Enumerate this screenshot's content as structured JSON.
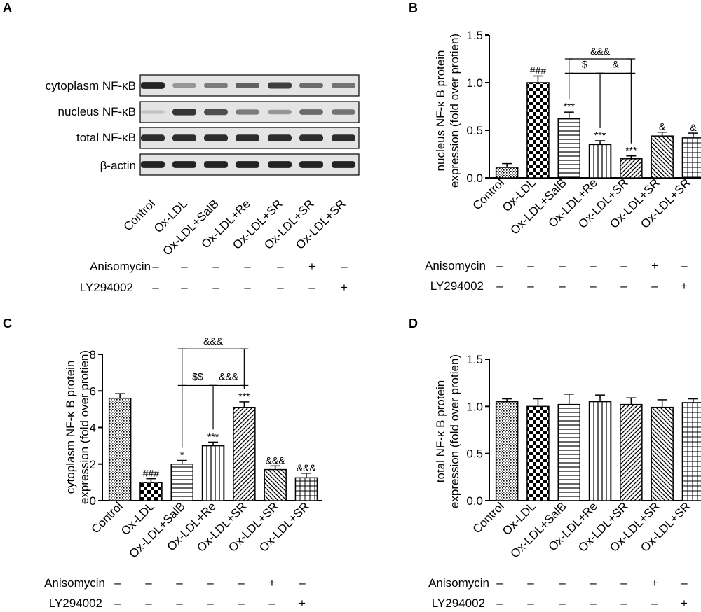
{
  "figure": {
    "panel_labels": [
      "A",
      "B",
      "C",
      "D"
    ],
    "colors": {
      "ink": "#000000",
      "band": "#1a1a1a",
      "membrane": "#e4e4e4"
    }
  },
  "categories": [
    "Control",
    "Ox-LDL",
    "Ox-LDL+SalB",
    "Ox-LDL+Re",
    "Ox-LDL+SR",
    "Ox-LDL+SR",
    "Ox-LDL+SR"
  ],
  "treatments": [
    {
      "name": "Anisomycin",
      "marks": [
        "–",
        "–",
        "–",
        "–",
        "–",
        "+",
        "–"
      ]
    },
    {
      "name": "LY294002",
      "marks": [
        "–",
        "–",
        "–",
        "–",
        "–",
        "–",
        "+"
      ]
    }
  ],
  "blot": {
    "rows": [
      {
        "label": "cytoplasm NF-κB",
        "intensity": [
          0.95,
          0.3,
          0.45,
          0.6,
          0.8,
          0.55,
          0.5
        ]
      },
      {
        "label": "nucleus NF-κB",
        "intensity": [
          0.05,
          0.85,
          0.7,
          0.45,
          0.3,
          0.55,
          0.5
        ]
      },
      {
        "label": "total NF-κB",
        "intensity": [
          0.9,
          0.9,
          0.9,
          0.9,
          0.9,
          0.9,
          0.9
        ]
      },
      {
        "label": "β-actin",
        "intensity": [
          0.95,
          0.95,
          0.95,
          0.95,
          0.95,
          0.95,
          0.95
        ]
      }
    ]
  },
  "chart_data": [
    {
      "panel": "B",
      "type": "bar",
      "ylabel": [
        "nucleus NF-κ B protein",
        "expression (fold over protien)"
      ],
      "ylim": [
        0,
        1.5
      ],
      "yticks": [
        "0.0",
        "0.5",
        "1.0",
        "1.5"
      ],
      "categories": [
        "Control",
        "Ox-LDL",
        "Ox-LDL+SalB",
        "Ox-LDL+Re",
        "Ox-LDL+SR",
        "Ox-LDL+SR",
        "Ox-LDL+SR"
      ],
      "values": [
        0.11,
        1.0,
        0.62,
        0.35,
        0.2,
        0.44,
        0.42
      ],
      "errors": [
        0.04,
        0.07,
        0.07,
        0.04,
        0.03,
        0.04,
        0.05
      ],
      "labels": [
        "",
        "###",
        "***",
        "***",
        "***",
        "&",
        "&"
      ],
      "comparisons": [
        {
          "from": 2,
          "to": 4,
          "y": 1.25,
          "label": "&&&",
          "row": 0
        },
        {
          "from": 2,
          "to": 3,
          "y": 1.1,
          "label": "$",
          "row": 1
        },
        {
          "from": 3,
          "to": 4,
          "y": 1.1,
          "label": "&",
          "row": 1
        }
      ]
    },
    {
      "panel": "C",
      "type": "bar",
      "ylabel": [
        "cytoplasm NF-κ B protein",
        "expression (fold over protien)"
      ],
      "ylim": [
        0,
        8
      ],
      "yticks": [
        "0",
        "2",
        "4",
        "6",
        "8"
      ],
      "categories": [
        "Control",
        "Ox-LDL",
        "Ox-LDL+SalB",
        "Ox-LDL+Re",
        "Ox-LDL+SR",
        "Ox-LDL+SR",
        "Ox-LDL+SR"
      ],
      "values": [
        5.6,
        1.0,
        2.0,
        3.0,
        5.1,
        1.7,
        1.25
      ],
      "errors": [
        0.25,
        0.2,
        0.2,
        0.2,
        0.3,
        0.2,
        0.25
      ],
      "labels": [
        "",
        "###",
        "*",
        "***",
        "***",
        "&&&",
        "&&&"
      ],
      "comparisons": [
        {
          "from": 2,
          "to": 4,
          "y": 8.3,
          "label": "&&&",
          "row": 0
        },
        {
          "from": 2,
          "to": 3,
          "y": 6.3,
          "label": "$$",
          "row": 1
        },
        {
          "from": 3,
          "to": 4,
          "y": 6.3,
          "label": "&&&",
          "row": 1
        }
      ]
    },
    {
      "panel": "D",
      "type": "bar",
      "ylabel": [
        "total NF-κ B protein",
        "expression (fold over protien)"
      ],
      "ylim": [
        0,
        1.5
      ],
      "yticks": [
        "0.0",
        "0.5",
        "1.0",
        "1.5"
      ],
      "categories": [
        "Control",
        "Ox-LDL",
        "Ox-LDL+SalB",
        "Ox-LDL+Re",
        "Ox-LDL+SR",
        "Ox-LDL+SR",
        "Ox-LDL+SR"
      ],
      "values": [
        1.05,
        1.0,
        1.02,
        1.05,
        1.02,
        0.99,
        1.04
      ],
      "errors": [
        0.03,
        0.08,
        0.11,
        0.07,
        0.07,
        0.08,
        0.04
      ],
      "labels": [
        "",
        "",
        "",
        "",
        "",
        "",
        ""
      ],
      "comparisons": []
    }
  ]
}
